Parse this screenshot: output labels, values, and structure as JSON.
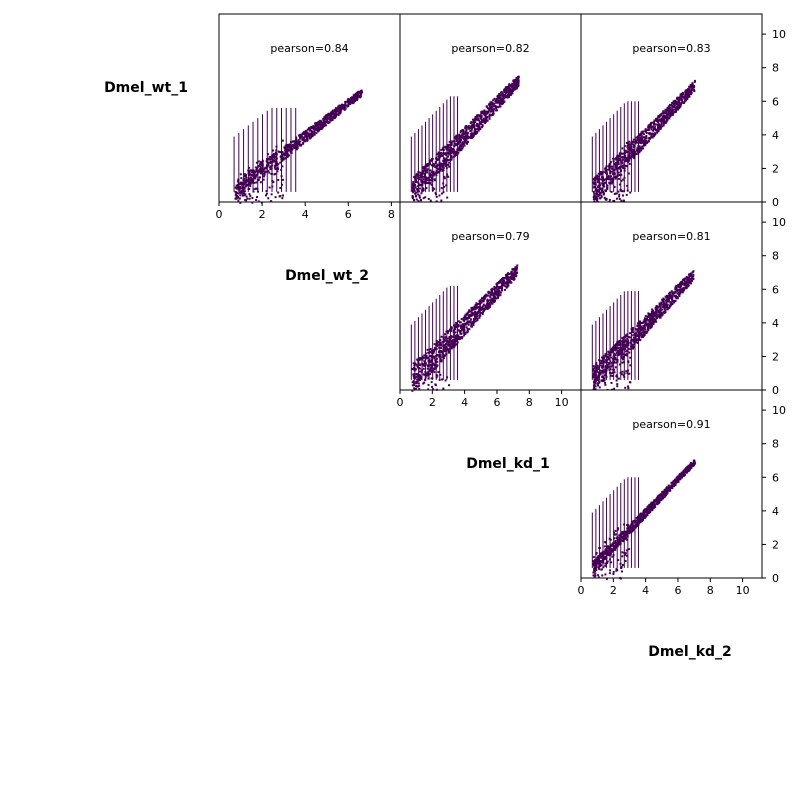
{
  "chart_data": {
    "type": "scatter",
    "layout": "upper-triangle pairwise density scatter matrix",
    "samples": [
      "Dmel_wt_1",
      "Dmel_wt_2",
      "Dmel_kd_1",
      "Dmel_kd_2"
    ],
    "colormap": [
      "#440154",
      "#3b528b",
      "#21918c",
      "#5ec962",
      "#fde725"
    ],
    "dominant_color": "#440154",
    "panels": [
      {
        "row": 0,
        "col": 1,
        "pearson": 0.84,
        "label": "pearson=0.84",
        "xlim": [
          0,
          8.4
        ],
        "ylim": [
          0,
          11.2
        ],
        "max": 6.6,
        "spread": 0.35,
        "xticks": [
          0,
          2,
          4,
          6,
          8
        ]
      },
      {
        "row": 0,
        "col": 2,
        "pearson": 0.82,
        "label": "pearson=0.82",
        "xlim": [
          0,
          11.2
        ],
        "ylim": [
          0,
          11.2
        ],
        "max": 7.3,
        "spread": 0.55,
        "xticks": []
      },
      {
        "row": 0,
        "col": 3,
        "pearson": 0.83,
        "label": "pearson=0.83",
        "xlim": [
          0,
          11.2
        ],
        "ylim": [
          0,
          11.2
        ],
        "max": 7.0,
        "spread": 0.5,
        "xticks": []
      },
      {
        "row": 1,
        "col": 2,
        "pearson": 0.79,
        "label": "pearson=0.79",
        "xlim": [
          0,
          11.2
        ],
        "ylim": [
          0,
          11.2
        ],
        "max": 7.2,
        "spread": 0.6,
        "xticks": [
          0,
          2,
          4,
          6,
          8,
          10
        ]
      },
      {
        "row": 1,
        "col": 3,
        "pearson": 0.81,
        "label": "pearson=0.81",
        "xlim": [
          0,
          11.2
        ],
        "ylim": [
          0,
          11.2
        ],
        "max": 6.9,
        "spread": 0.55,
        "xticks": []
      },
      {
        "row": 2,
        "col": 3,
        "pearson": 0.91,
        "label": "pearson=0.91",
        "xlim": [
          0,
          11.2
        ],
        "ylim": [
          0,
          11.2
        ],
        "max": 7.0,
        "spread": 0.25,
        "xticks": [
          0,
          2,
          4,
          6,
          8,
          10
        ]
      }
    ],
    "right_axis_ticks": [
      0,
      2,
      4,
      6,
      8,
      10
    ]
  }
}
